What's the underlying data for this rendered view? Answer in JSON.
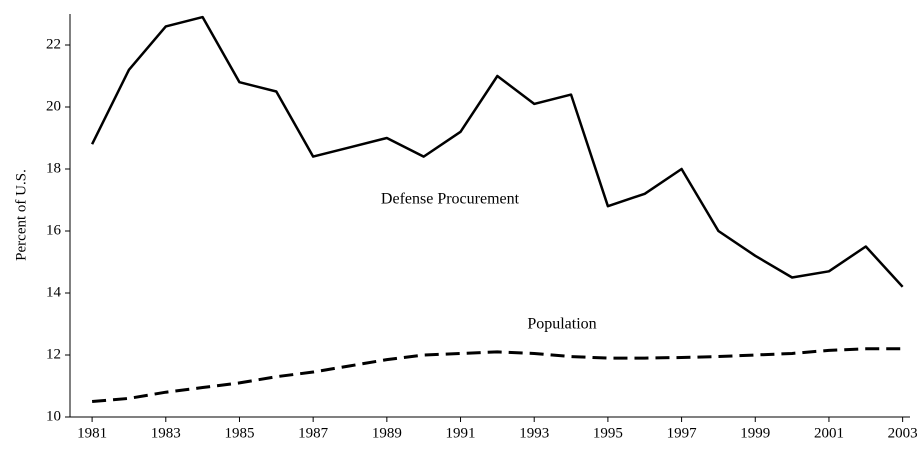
{
  "chart_data": {
    "type": "line",
    "y_label": "Percent of U.S.",
    "x": [
      1981,
      1982,
      1983,
      1984,
      1985,
      1986,
      1987,
      1988,
      1989,
      1990,
      1991,
      1992,
      1993,
      1994,
      1995,
      1996,
      1997,
      1998,
      1999,
      2000,
      2001,
      2002,
      2003
    ],
    "series": [
      {
        "name": "Defense Procurement",
        "color": "#000000",
        "dashed": false,
        "values": [
          18.8,
          21.2,
          22.6,
          22.9,
          20.8,
          20.5,
          18.4,
          18.7,
          19.0,
          18.4,
          19.2,
          21.0,
          20.1,
          20.4,
          16.8,
          17.2,
          18.0,
          16.0,
          15.2,
          14.5,
          14.7,
          15.5,
          14.2
        ]
      },
      {
        "name": "Population",
        "color": "#000000",
        "dashed": true,
        "values": [
          10.5,
          10.6,
          10.8,
          10.95,
          11.1,
          11.3,
          11.45,
          11.65,
          11.85,
          12.0,
          12.05,
          12.1,
          12.05,
          11.95,
          11.9,
          11.9,
          11.92,
          11.95,
          12.0,
          12.05,
          12.15,
          12.2,
          12.2
        ]
      }
    ],
    "xlim": [
      1980.4,
      2003.2
    ],
    "xticks": [
      1981,
      1983,
      1985,
      1987,
      1989,
      1991,
      1993,
      1995,
      1997,
      1999,
      2001,
      2003
    ],
    "ylim": [
      10,
      23
    ],
    "yticks": [
      10,
      12,
      14,
      16,
      18,
      20,
      22
    ],
    "grid": false
  }
}
